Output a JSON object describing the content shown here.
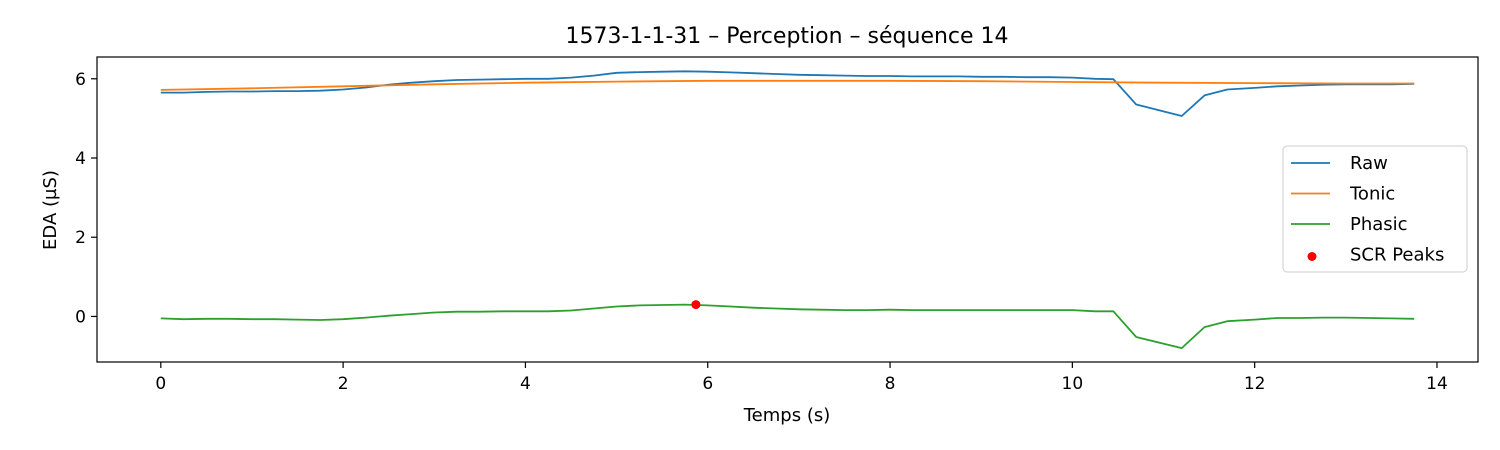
{
  "chart_data": {
    "type": "line",
    "title": "1573-1-1-31 – Perception – séquence 14",
    "xlabel": "Temps (s)",
    "ylabel": "EDA (µS)",
    "xlim": [
      -0.7,
      14.45
    ],
    "ylim": [
      -1.15,
      6.55
    ],
    "xticks": [
      0,
      2,
      4,
      6,
      8,
      10,
      12,
      14
    ],
    "yticks": [
      0,
      2,
      4,
      6
    ],
    "x_tick_labels": [
      "0",
      "2",
      "4",
      "6",
      "8",
      "10",
      "12",
      "14"
    ],
    "y_tick_labels": [
      "0",
      "2",
      "4",
      "6"
    ],
    "grid": false,
    "legend_position": "center-right",
    "series": [
      {
        "name": "Raw",
        "color": "#1f77b4",
        "x": [
          0,
          0.25,
          0.5,
          0.75,
          1.0,
          1.25,
          1.5,
          1.75,
          2.0,
          2.25,
          2.5,
          2.75,
          3.0,
          3.25,
          3.5,
          3.75,
          4.0,
          4.25,
          4.5,
          4.75,
          5.0,
          5.25,
          5.5,
          5.75,
          6.0,
          6.25,
          6.5,
          6.75,
          7.0,
          7.25,
          7.5,
          7.75,
          8.0,
          8.25,
          8.5,
          8.75,
          9.0,
          9.25,
          9.5,
          9.75,
          10.0,
          10.25,
          10.45,
          10.7,
          11.2,
          11.45,
          11.7,
          12.0,
          12.25,
          12.5,
          12.75,
          13.0,
          13.25,
          13.5,
          13.75
        ],
        "y": [
          5.65,
          5.65,
          5.67,
          5.68,
          5.68,
          5.69,
          5.69,
          5.7,
          5.73,
          5.78,
          5.85,
          5.9,
          5.94,
          5.97,
          5.98,
          5.99,
          6.0,
          6.0,
          6.03,
          6.08,
          6.15,
          6.17,
          6.18,
          6.19,
          6.18,
          6.16,
          6.14,
          6.12,
          6.1,
          6.09,
          6.08,
          6.07,
          6.07,
          6.06,
          6.06,
          6.06,
          6.05,
          6.05,
          6.04,
          6.04,
          6.03,
          6.0,
          5.99,
          5.35,
          5.06,
          5.58,
          5.73,
          5.77,
          5.81,
          5.83,
          5.85,
          5.86,
          5.86,
          5.86,
          5.87
        ]
      },
      {
        "name": "Tonic",
        "color": "#ff7f0e",
        "x": [
          0,
          1.0,
          2.0,
          3.0,
          4.0,
          5.0,
          6.0,
          7.0,
          8.0,
          9.0,
          10.0,
          11.0,
          12.0,
          13.0,
          13.75
        ],
        "y": [
          5.72,
          5.76,
          5.81,
          5.86,
          5.9,
          5.93,
          5.95,
          5.95,
          5.95,
          5.94,
          5.92,
          5.9,
          5.89,
          5.88,
          5.88
        ]
      },
      {
        "name": "Phasic",
        "color": "#2ca02c",
        "x": [
          0,
          0.25,
          0.5,
          0.75,
          1.0,
          1.25,
          1.5,
          1.75,
          2.0,
          2.25,
          2.5,
          2.75,
          3.0,
          3.25,
          3.5,
          3.75,
          4.0,
          4.25,
          4.5,
          4.75,
          5.0,
          5.25,
          5.5,
          5.75,
          6.0,
          6.25,
          6.5,
          6.75,
          7.0,
          7.25,
          7.5,
          7.75,
          8.0,
          8.25,
          8.5,
          8.75,
          9.0,
          9.25,
          9.5,
          9.75,
          10.0,
          10.25,
          10.45,
          10.7,
          11.2,
          11.45,
          11.7,
          12.0,
          12.25,
          12.5,
          12.75,
          13.0,
          13.25,
          13.5,
          13.75
        ],
        "y": [
          -0.05,
          -0.07,
          -0.06,
          -0.06,
          -0.07,
          -0.07,
          -0.08,
          -0.09,
          -0.07,
          -0.03,
          0.02,
          0.06,
          0.1,
          0.12,
          0.12,
          0.13,
          0.13,
          0.13,
          0.15,
          0.2,
          0.25,
          0.28,
          0.29,
          0.3,
          0.28,
          0.25,
          0.22,
          0.2,
          0.18,
          0.17,
          0.16,
          0.16,
          0.17,
          0.16,
          0.16,
          0.16,
          0.16,
          0.16,
          0.16,
          0.16,
          0.16,
          0.13,
          0.13,
          -0.52,
          -0.8,
          -0.27,
          -0.12,
          -0.08,
          -0.04,
          -0.04,
          -0.03,
          -0.03,
          -0.04,
          -0.05,
          -0.06
        ]
      }
    ],
    "scr_peaks": {
      "name": "SCR Peaks",
      "color": "#ff0000",
      "points": [
        {
          "x": 5.87,
          "y": 0.3
        }
      ]
    }
  }
}
